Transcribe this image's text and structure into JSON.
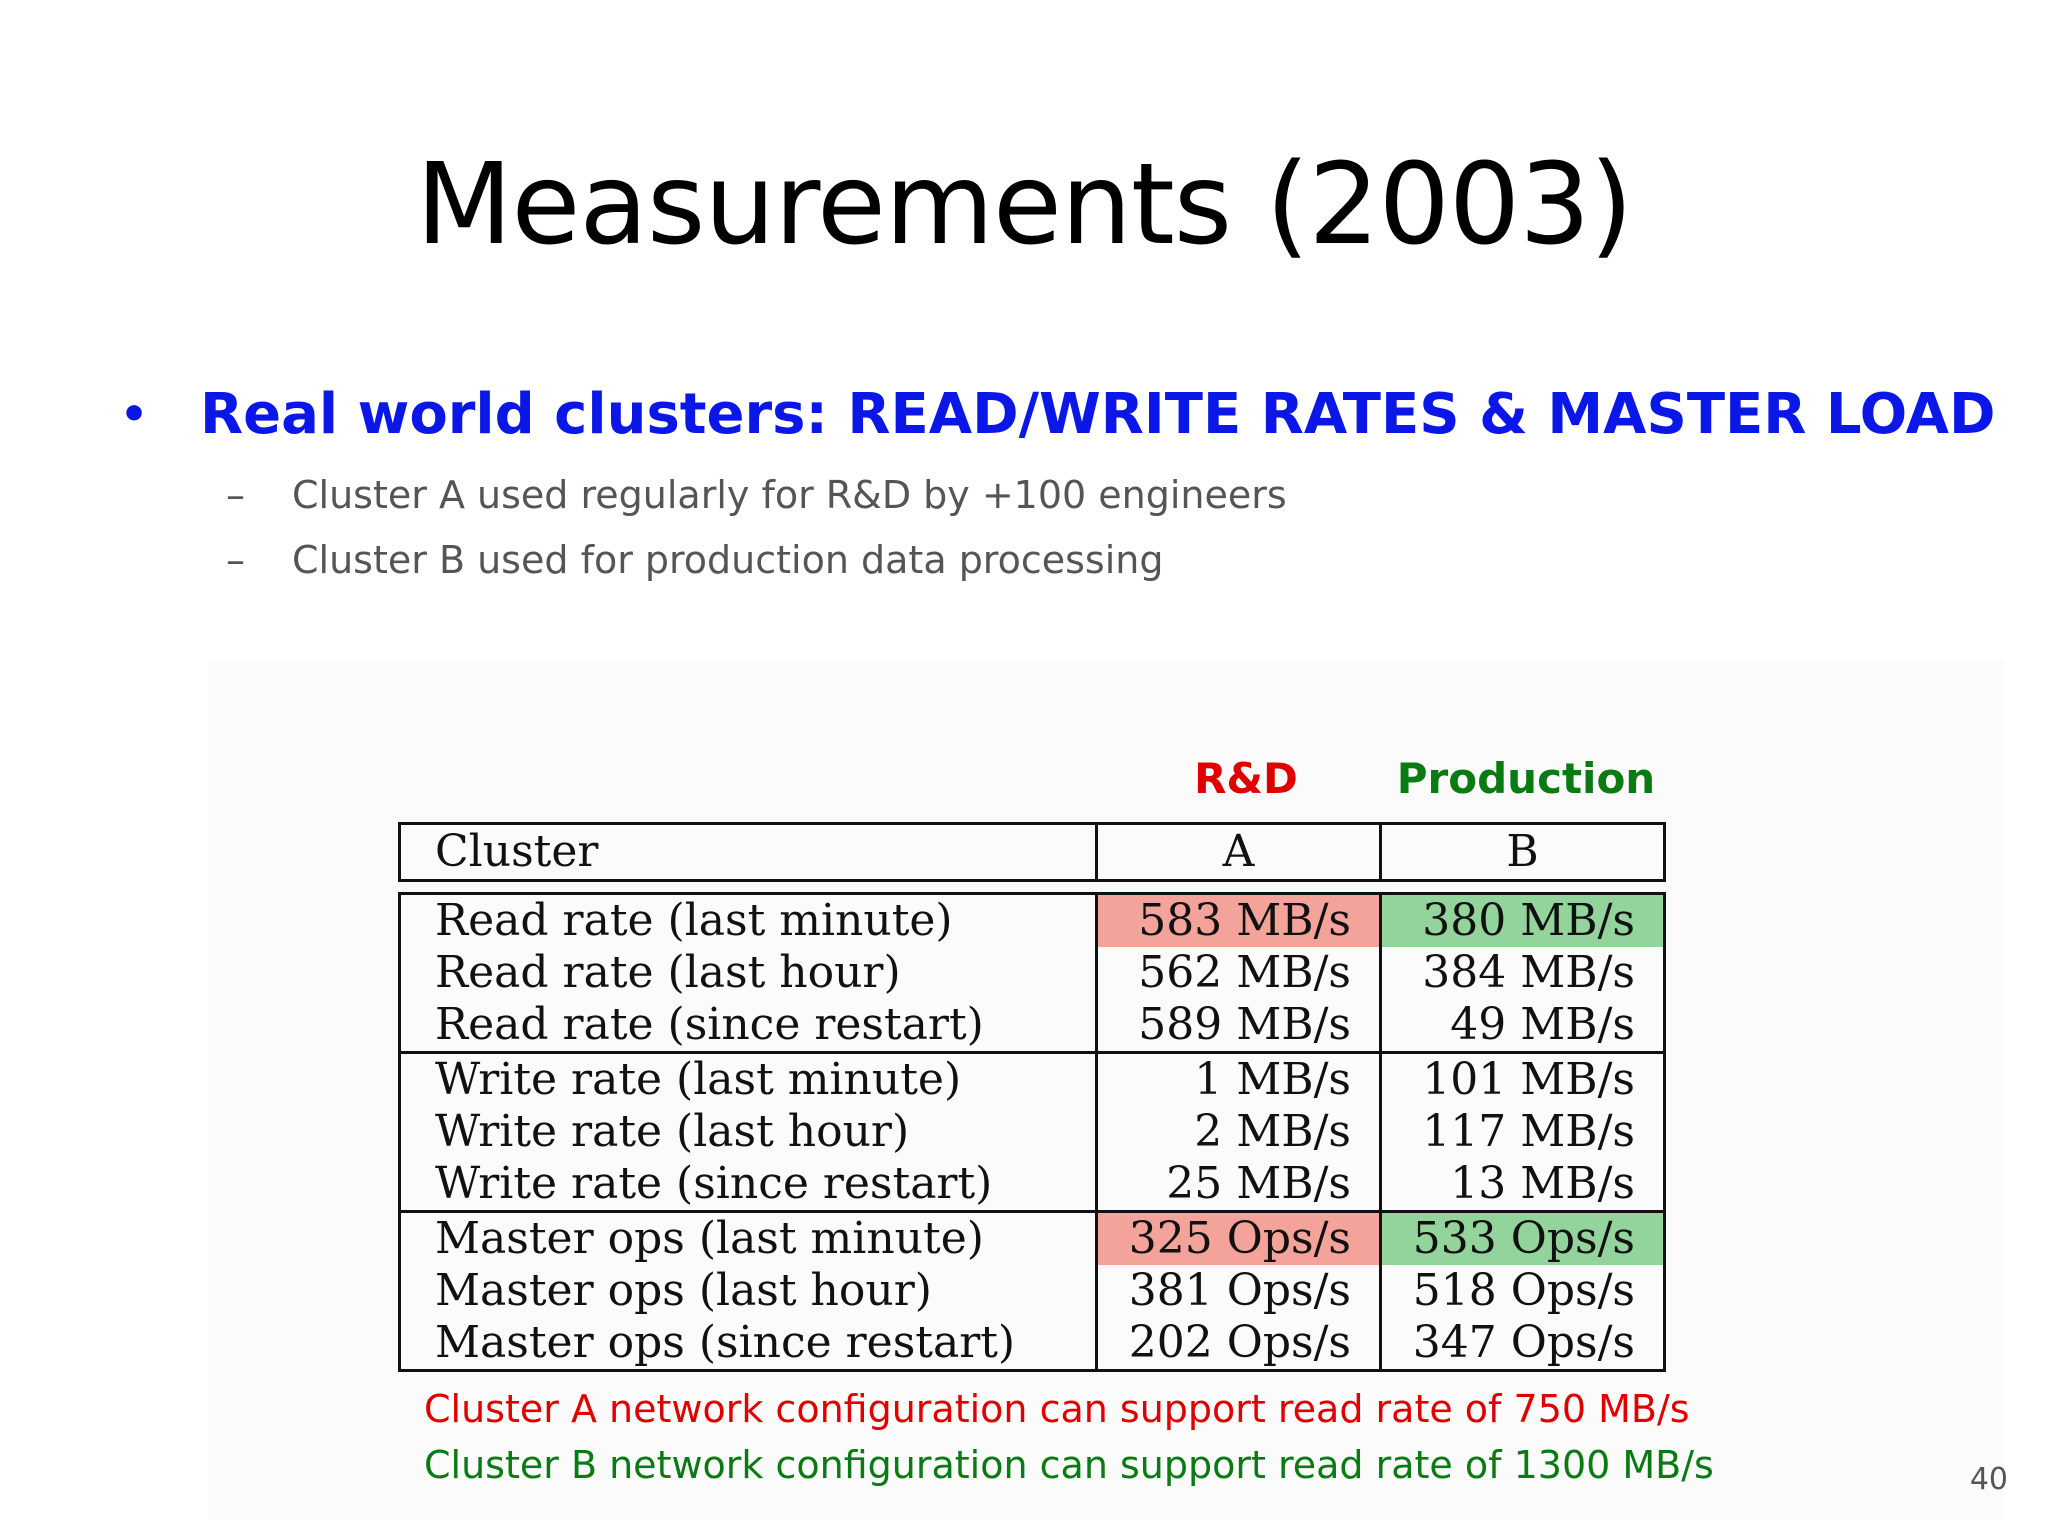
{
  "slide": {
    "title": "Measurements (2003)",
    "bullet": "Real world clusters: READ/WRITE RATES & MASTER LOAD",
    "bullet_marker": "•",
    "sub_marker": "–",
    "sub_items": [
      "Cluster A used regularly for R&D by +100 engineers",
      "Cluster B used for production data processing"
    ],
    "page_number": "40"
  },
  "figure": {
    "column_labels": {
      "a": "R&D",
      "b": "Production"
    },
    "colors": {
      "rd": "#e00000",
      "production": "#0a7a12",
      "highlight_red": "#f4a39a",
      "highlight_green": "#93d39c"
    },
    "table": {
      "headers": [
        "Cluster",
        "A",
        "B"
      ],
      "rows": [
        {
          "label": "Read rate (last minute)",
          "a": "583 MB/s",
          "b": "380 MB/s"
        },
        {
          "label": "Read rate (last hour)",
          "a": "562 MB/s",
          "b": "384 MB/s"
        },
        {
          "label": "Read rate (since restart)",
          "a": "589 MB/s",
          "b": "49 MB/s"
        },
        {
          "label": "Write rate (last minute)",
          "a": "1 MB/s",
          "b": "101 MB/s"
        },
        {
          "label": "Write rate (last hour)",
          "a": "2 MB/s",
          "b": "117 MB/s"
        },
        {
          "label": "Write rate (since restart)",
          "a": "25 MB/s",
          "b": "13 MB/s"
        },
        {
          "label": "Master ops (last minute)",
          "a": "325 Ops/s",
          "b": "533 Ops/s"
        },
        {
          "label": "Master ops (last hour)",
          "a": "381 Ops/s",
          "b": "518 Ops/s"
        },
        {
          "label": "Master ops (since restart)",
          "a": "202 Ops/s",
          "b": "347 Ops/s"
        }
      ]
    },
    "notes": {
      "a": "Cluster A network configuration can support read rate of 750 MB/s",
      "b": "Cluster B network configuration can support read rate of 1300 MB/s"
    }
  }
}
